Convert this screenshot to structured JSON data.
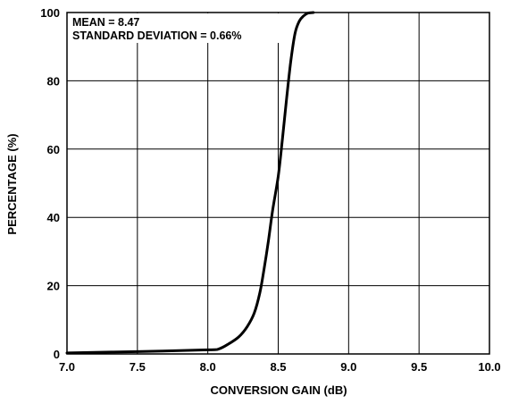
{
  "chart_data": {
    "type": "line",
    "title": "",
    "xlabel": "CONVERSION GAIN (dB)",
    "ylabel": "PERCENTAGE (%)",
    "xlim": [
      7.0,
      10.0
    ],
    "ylim": [
      0,
      100
    ],
    "x_ticks": [
      "7.0",
      "7.5",
      "8.0",
      "8.5",
      "9.0",
      "9.5",
      "10.0"
    ],
    "y_ticks": [
      "0",
      "20",
      "40",
      "60",
      "80",
      "100"
    ],
    "grid": true,
    "annotations": [
      "MEAN = 8.47",
      "STANDARD DEVIATION = 0.66%"
    ],
    "series": [
      {
        "x": [
          7.0,
          7.5,
          8.0,
          8.08,
          8.15,
          8.22,
          8.28,
          8.33,
          8.37,
          8.4,
          8.43,
          8.46,
          8.5,
          8.53,
          8.56,
          8.59,
          8.62,
          8.65,
          8.68,
          8.71,
          8.75
        ],
        "y": [
          0.3,
          0.7,
          1.2,
          1.5,
          3,
          5,
          8,
          12,
          18,
          25,
          33,
          42,
          52,
          63,
          75,
          86,
          94,
          97.5,
          99,
          99.8,
          100
        ]
      }
    ]
  }
}
